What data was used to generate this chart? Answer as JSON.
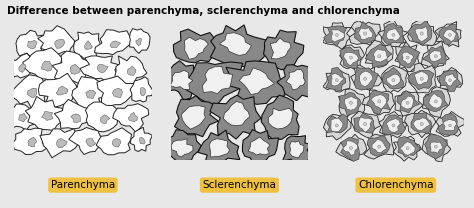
{
  "title": "Difference between parenchyma, sclerenchyma and chlorenchyma",
  "labels": [
    "Parenchyma",
    "Sclerenchyma",
    "Chlorenchyma"
  ],
  "outer_bg": "#e8e8e8",
  "label_bg": "#f0c040",
  "title_fontsize": 7.5,
  "label_fontsize": 7.5,
  "para_bg": "#ffffff",
  "scler_bg": "#c8c8c8",
  "chlor_bg": "#a0a0a0",
  "para_cells": [
    [
      1.2,
      8.5,
      1.1,
      0.85,
      15
    ],
    [
      3.2,
      8.6,
      1.3,
      0.9,
      -10
    ],
    [
      5.3,
      8.4,
      1.0,
      0.95,
      5
    ],
    [
      7.2,
      8.5,
      1.2,
      0.85,
      12
    ],
    [
      9.0,
      8.7,
      0.7,
      0.75,
      -5
    ],
    [
      0.5,
      6.8,
      0.9,
      0.85,
      8
    ],
    [
      2.2,
      6.9,
      1.4,
      1.05,
      -8
    ],
    [
      4.3,
      6.7,
      1.3,
      1.1,
      10
    ],
    [
      6.3,
      6.8,
      1.2,
      1.0,
      -12
    ],
    [
      8.4,
      6.6,
      1.1,
      0.95,
      6
    ],
    [
      1.2,
      5.0,
      1.2,
      1.05,
      -6
    ],
    [
      3.3,
      5.1,
      1.4,
      1.0,
      14
    ],
    [
      5.4,
      4.9,
      1.2,
      1.1,
      -9
    ],
    [
      7.4,
      5.0,
      1.3,
      1.0,
      7
    ],
    [
      9.3,
      5.1,
      0.7,
      0.9,
      -4
    ],
    [
      0.5,
      3.2,
      1.0,
      0.9,
      10
    ],
    [
      2.3,
      3.3,
      1.4,
      1.05,
      -11
    ],
    [
      4.4,
      3.2,
      1.3,
      1.0,
      8
    ],
    [
      6.4,
      3.1,
      1.2,
      1.0,
      -7
    ],
    [
      8.5,
      3.2,
      1.1,
      0.95,
      5
    ],
    [
      1.2,
      1.4,
      1.1,
      0.9,
      -8
    ],
    [
      3.3,
      1.3,
      1.3,
      0.95,
      12
    ],
    [
      5.4,
      1.4,
      1.2,
      0.9,
      -5
    ],
    [
      7.3,
      1.3,
      1.2,
      0.95,
      9
    ],
    [
      9.2,
      1.5,
      0.7,
      0.8,
      -3
    ]
  ],
  "scler_cells": [
    [
      1.8,
      8.2,
      1.5,
      1.3,
      10
    ],
    [
      4.8,
      8.4,
      1.8,
      1.4,
      -8
    ],
    [
      8.0,
      8.0,
      1.4,
      1.3,
      12
    ],
    [
      0.8,
      5.8,
      1.3,
      1.2,
      -5
    ],
    [
      3.3,
      5.8,
      1.8,
      1.6,
      15
    ],
    [
      6.2,
      5.7,
      1.9,
      1.5,
      -10
    ],
    [
      9.2,
      5.9,
      1.2,
      1.3,
      8
    ],
    [
      1.8,
      3.2,
      1.5,
      1.4,
      -12
    ],
    [
      4.8,
      3.3,
      1.7,
      1.5,
      10
    ],
    [
      8.0,
      3.1,
      1.4,
      1.3,
      -7
    ],
    [
      0.8,
      0.9,
      1.2,
      1.1,
      6
    ],
    [
      3.5,
      0.8,
      1.4,
      1.2,
      -9
    ],
    [
      6.5,
      0.9,
      1.3,
      1.1,
      11
    ],
    [
      9.2,
      0.8,
      1.0,
      1.1,
      -4
    ]
  ],
  "chlor_cells": [
    [
      1.0,
      9.0,
      0.9,
      0.85,
      8
    ],
    [
      3.0,
      9.1,
      0.95,
      0.9,
      -6
    ],
    [
      5.0,
      9.0,
      0.9,
      0.85,
      10
    ],
    [
      7.0,
      9.1,
      0.95,
      0.9,
      -8
    ],
    [
      9.0,
      9.0,
      0.85,
      0.8,
      5
    ],
    [
      2.0,
      7.4,
      0.9,
      0.9,
      -10
    ],
    [
      4.0,
      7.5,
      0.95,
      0.9,
      7
    ],
    [
      6.0,
      7.4,
      0.9,
      0.85,
      -5
    ],
    [
      8.0,
      7.5,
      0.9,
      0.9,
      9
    ],
    [
      1.0,
      5.8,
      0.9,
      0.85,
      6
    ],
    [
      3.0,
      5.9,
      0.95,
      0.9,
      -8
    ],
    [
      5.0,
      5.8,
      0.9,
      0.85,
      11
    ],
    [
      7.0,
      5.9,
      0.95,
      0.9,
      -6
    ],
    [
      9.0,
      5.8,
      0.85,
      0.8,
      4
    ],
    [
      2.0,
      4.2,
      0.9,
      0.9,
      -7
    ],
    [
      4.0,
      4.3,
      0.95,
      0.9,
      10
    ],
    [
      6.0,
      4.2,
      0.9,
      0.85,
      -9
    ],
    [
      8.0,
      4.3,
      0.9,
      0.9,
      6
    ],
    [
      1.0,
      2.6,
      0.9,
      0.85,
      9
    ],
    [
      3.0,
      2.7,
      0.95,
      0.9,
      -5
    ],
    [
      5.0,
      2.6,
      0.9,
      0.85,
      7
    ],
    [
      7.0,
      2.7,
      0.95,
      0.9,
      -10
    ],
    [
      9.0,
      2.6,
      0.85,
      0.8,
      4
    ],
    [
      2.0,
      1.0,
      0.9,
      0.9,
      -6
    ],
    [
      4.0,
      1.1,
      0.95,
      0.9,
      8
    ],
    [
      6.0,
      1.0,
      0.9,
      0.85,
      -4
    ],
    [
      8.0,
      1.1,
      0.9,
      0.9,
      11
    ]
  ]
}
